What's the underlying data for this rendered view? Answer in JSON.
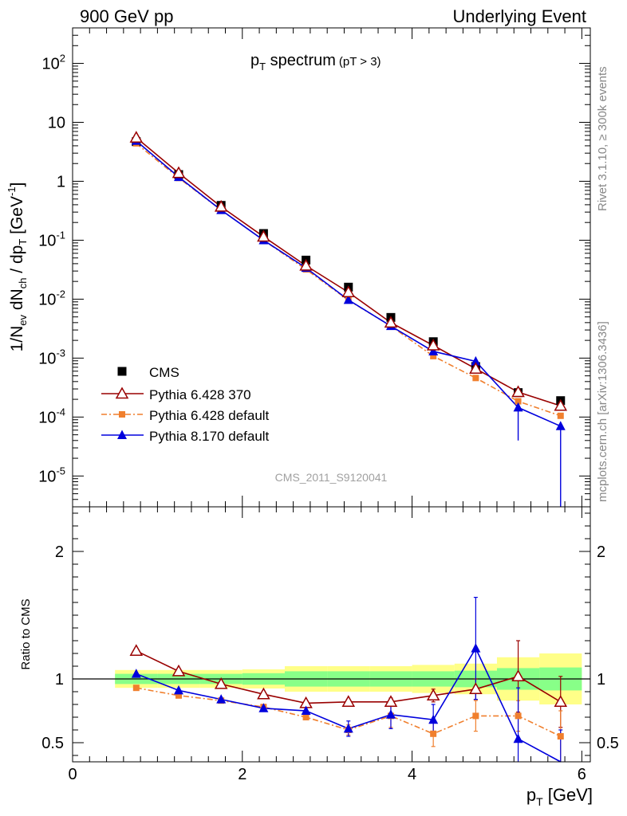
{
  "header": {
    "left": "900 GeV pp",
    "right": "Underlying Event"
  },
  "side_text": {
    "top": "Rivet 3.1.10, ≥ 300k events",
    "bottom": "mcplots.cern.ch [arXiv:1306.3436]"
  },
  "chart_data": [
    {
      "type": "scatter",
      "panel": "main",
      "title": {
        "main": "p",
        "sub": "T",
        "rest": " spectrum",
        "cut": "(pT >  3)"
      },
      "ylabel": "1/N_ev dN_ch / dp_T [GeV^-1]",
      "yscale": "log",
      "ylim": [
        3e-06,
        400
      ],
      "xlim": [
        0,
        6.1
      ],
      "watermark": "CMS_2011_S9120041",
      "x": [
        0.75,
        1.25,
        1.75,
        2.25,
        2.75,
        3.25,
        3.75,
        4.25,
        4.75,
        5.25,
        5.75
      ],
      "series": [
        {
          "name": "CMS",
          "color": "#000000",
          "marker": "square",
          "values": [
            4.7,
            1.3,
            0.39,
            0.13,
            0.046,
            0.016,
            0.0049,
            0.0019,
            0.00072,
            0.00026,
            0.00019
          ]
        },
        {
          "name": "Pythia 6.428 370",
          "color": "#990000",
          "marker": "open-triangle",
          "values": [
            5.5,
            1.38,
            0.37,
            0.115,
            0.037,
            0.0131,
            0.004,
            0.00164,
            0.00066,
            0.000265,
            0.000155
          ]
        },
        {
          "name": "Pythia 6.428 default",
          "color": "#f07f2d",
          "marker": "square-small",
          "dash": true,
          "values": [
            4.4,
            1.14,
            0.325,
            0.1,
            0.032,
            0.0096,
            0.0035,
            0.00108,
            0.00046,
            0.000185,
            0.000105
          ]
        },
        {
          "name": "Pythia 8.170 default",
          "color": "#0000dd",
          "marker": "filled-triangle",
          "values": [
            4.85,
            1.18,
            0.325,
            0.1,
            0.034,
            0.0097,
            0.0035,
            0.0013,
            0.00088,
            0.000145,
            7e-05
          ],
          "err_low": [
            0,
            0,
            0,
            0,
            0,
            0,
            0,
            0,
            0.0002,
            0.000105,
            7e-05
          ],
          "err_high": [
            0,
            0,
            0,
            0,
            0,
            0,
            0,
            0,
            0.00017,
            0,
            0
          ]
        }
      ]
    },
    {
      "type": "line",
      "panel": "ratio",
      "ylabel": "Ratio to CMS",
      "ylim": [
        0.35,
        2.35
      ],
      "xlim": [
        0,
        6.1
      ],
      "xlabel": {
        "main": "p",
        "sub": "T",
        "rest": " [GeV]"
      },
      "x_ticks": [
        "0",
        "2",
        "4",
        "6"
      ],
      "y_ticks": [
        "0.5",
        "1",
        "2"
      ],
      "bands": {
        "edges": [
          0.5,
          1.0,
          1.5,
          2.0,
          2.5,
          3.0,
          3.5,
          4.0,
          4.5,
          5.0,
          5.5,
          6.0
        ],
        "green": [
          0.04,
          0.04,
          0.04,
          0.045,
          0.06,
          0.06,
          0.06,
          0.06,
          0.065,
          0.085,
          0.09
        ],
        "yellow": [
          0.07,
          0.07,
          0.07,
          0.075,
          0.1,
          0.1,
          0.1,
          0.11,
          0.12,
          0.17,
          0.2
        ]
      },
      "x": [
        0.75,
        1.25,
        1.75,
        2.25,
        2.75,
        3.25,
        3.75,
        4.25,
        4.75,
        5.25,
        5.75
      ],
      "series": [
        {
          "name": "Pythia 6.428 370",
          "color": "#990000",
          "marker": "open-triangle",
          "values": [
            1.22,
            1.06,
            0.96,
            0.88,
            0.81,
            0.82,
            0.82,
            0.87,
            0.92,
            1.02,
            0.82
          ],
          "err": [
            0,
            0,
            0,
            0,
            0,
            0,
            0.03,
            0.05,
            0.08,
            0.28,
            0.2
          ]
        },
        {
          "name": "Pythia 6.428 default",
          "color": "#f07f2d",
          "marker": "square-small",
          "dash": true,
          "values": [
            0.93,
            0.87,
            0.83,
            0.78,
            0.7,
            0.6,
            0.71,
            0.57,
            0.71,
            0.71,
            0.55
          ],
          "err": [
            0,
            0,
            0,
            0,
            0,
            0.04,
            0.09,
            0.1,
            0.12,
            0.12,
            0.2
          ]
        },
        {
          "name": "Pythia 8.170 default",
          "color": "#0000dd",
          "marker": "filled-triangle",
          "values": [
            1.04,
            0.91,
            0.84,
            0.77,
            0.75,
            0.61,
            0.72,
            0.68,
            1.24,
            0.53,
            0.3
          ],
          "err": [
            0,
            0,
            0,
            0,
            0,
            0.06,
            0.11,
            0.12,
            0.4,
            0.4,
            0.3
          ]
        }
      ]
    }
  ]
}
